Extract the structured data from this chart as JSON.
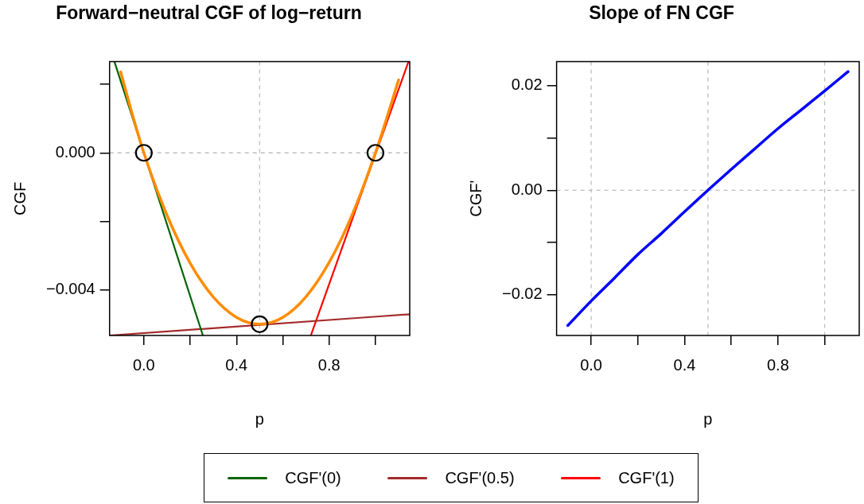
{
  "chart_data": [
    {
      "type": "line",
      "title": "Forward−neutral CGF of log−return",
      "xlabel": "p",
      "ylabel": "CGF",
      "xlim": [
        -0.148,
        1.148
      ],
      "ylim": [
        -0.00533,
        0.00266
      ],
      "xticks": [
        {
          "value": 0,
          "label": "0.0"
        },
        {
          "value": 0.2,
          "label": null
        },
        {
          "value": 0.4,
          "label": "0.4"
        },
        {
          "value": 0.6,
          "label": null
        },
        {
          "value": 0.8,
          "label": "0.8"
        },
        {
          "value": 1.0,
          "label": null
        }
      ],
      "yticks": [
        {
          "value": -0.004,
          "label": "−0.004"
        },
        {
          "value": -0.002,
          "label": null
        },
        {
          "value": 0,
          "label": "0.000"
        },
        {
          "value": 0.002,
          "label": null
        }
      ],
      "series": [
        {
          "color": "#ff8c00",
          "x": [
            -0.1,
            -0.05,
            0,
            0.1,
            0.2,
            0.3,
            0.4,
            0.5,
            0.6,
            0.7,
            0.8,
            0.9,
            1.0,
            1.05,
            1.1
          ],
          "values": [
            0.00236,
            0.00113,
            0,
            -0.00182,
            -0.00322,
            -0.00421,
            -0.0048,
            -0.005,
            -0.0048,
            -0.0042,
            -0.0032,
            -0.0018,
            0,
            0.00104,
            0.00213
          ]
        },
        {
          "name": "CGF'(0)",
          "color": "#006400",
          "x": [
            -0.127,
            0.255
          ],
          "values": [
            0.00266,
            -0.00533
          ]
        },
        {
          "name": "CGF'(0.5)",
          "color": "#a52a2a",
          "x": [
            -0.147,
            1.148
          ],
          "values": [
            -0.00533,
            -0.00471
          ]
        },
        {
          "name": "CGF'(1)",
          "color": "#ff0000",
          "x": [
            0.721,
            1.142
          ],
          "values": [
            -0.00533,
            0.00265
          ]
        },
        {
          "type": "scatter",
          "marker": "circle",
          "color": "#000000",
          "x": [
            0,
            0.5,
            1.0
          ],
          "values": [
            0,
            -0.005,
            0
          ]
        }
      ],
      "ref_lines": [
        {
          "axis": "x",
          "value": 0.5,
          "color": "#bebebe",
          "line_style": "dashed"
        },
        {
          "axis": "y",
          "value": 0,
          "color": "#bebebe",
          "line_style": "dashed"
        }
      ],
      "legend": "bottom"
    },
    {
      "type": "line",
      "title": "Slope of FN CGF",
      "xlabel": "p",
      "ylabel": "CGF'",
      "xlim": [
        -0.148,
        1.148
      ],
      "ylim": [
        -0.0278,
        0.0246
      ],
      "xticks": [
        {
          "value": 0,
          "label": "0.0"
        },
        {
          "value": 0.2,
          "label": null
        },
        {
          "value": 0.4,
          "label": "0.4"
        },
        {
          "value": 0.6,
          "label": null
        },
        {
          "value": 0.8,
          "label": "0.8"
        },
        {
          "value": 1.0,
          "label": null
        }
      ],
      "yticks": [
        {
          "value": -0.02,
          "label": "−0.02"
        },
        {
          "value": -0.01,
          "label": null
        },
        {
          "value": 0,
          "label": "0.00"
        },
        {
          "value": 0.01,
          "label": null
        },
        {
          "value": 0.02,
          "label": "0.02"
        }
      ],
      "series": [
        {
          "color": "#0000ff",
          "x": [
            -0.1,
            0,
            0.1,
            0.2,
            0.3,
            0.4,
            0.5,
            0.6,
            0.7,
            0.8,
            0.9,
            1.0,
            1.1
          ],
          "values": [
            -0.0259,
            -0.0212,
            -0.0168,
            -0.0123,
            -0.0083,
            -0.0041,
            0,
            0.004,
            0.0079,
            0.0118,
            0.0154,
            0.019,
            0.0227
          ]
        }
      ],
      "ref_lines": [
        {
          "axis": "x",
          "value": 0,
          "color": "#bebebe",
          "line_style": "dashed"
        },
        {
          "axis": "x",
          "value": 0.5,
          "color": "#bebebe",
          "line_style": "dashed"
        },
        {
          "axis": "x",
          "value": 1.0,
          "color": "#bebebe",
          "line_style": "dashed"
        },
        {
          "axis": "y",
          "value": 0,
          "color": "#bebebe",
          "line_style": "dashed"
        }
      ]
    }
  ]
}
